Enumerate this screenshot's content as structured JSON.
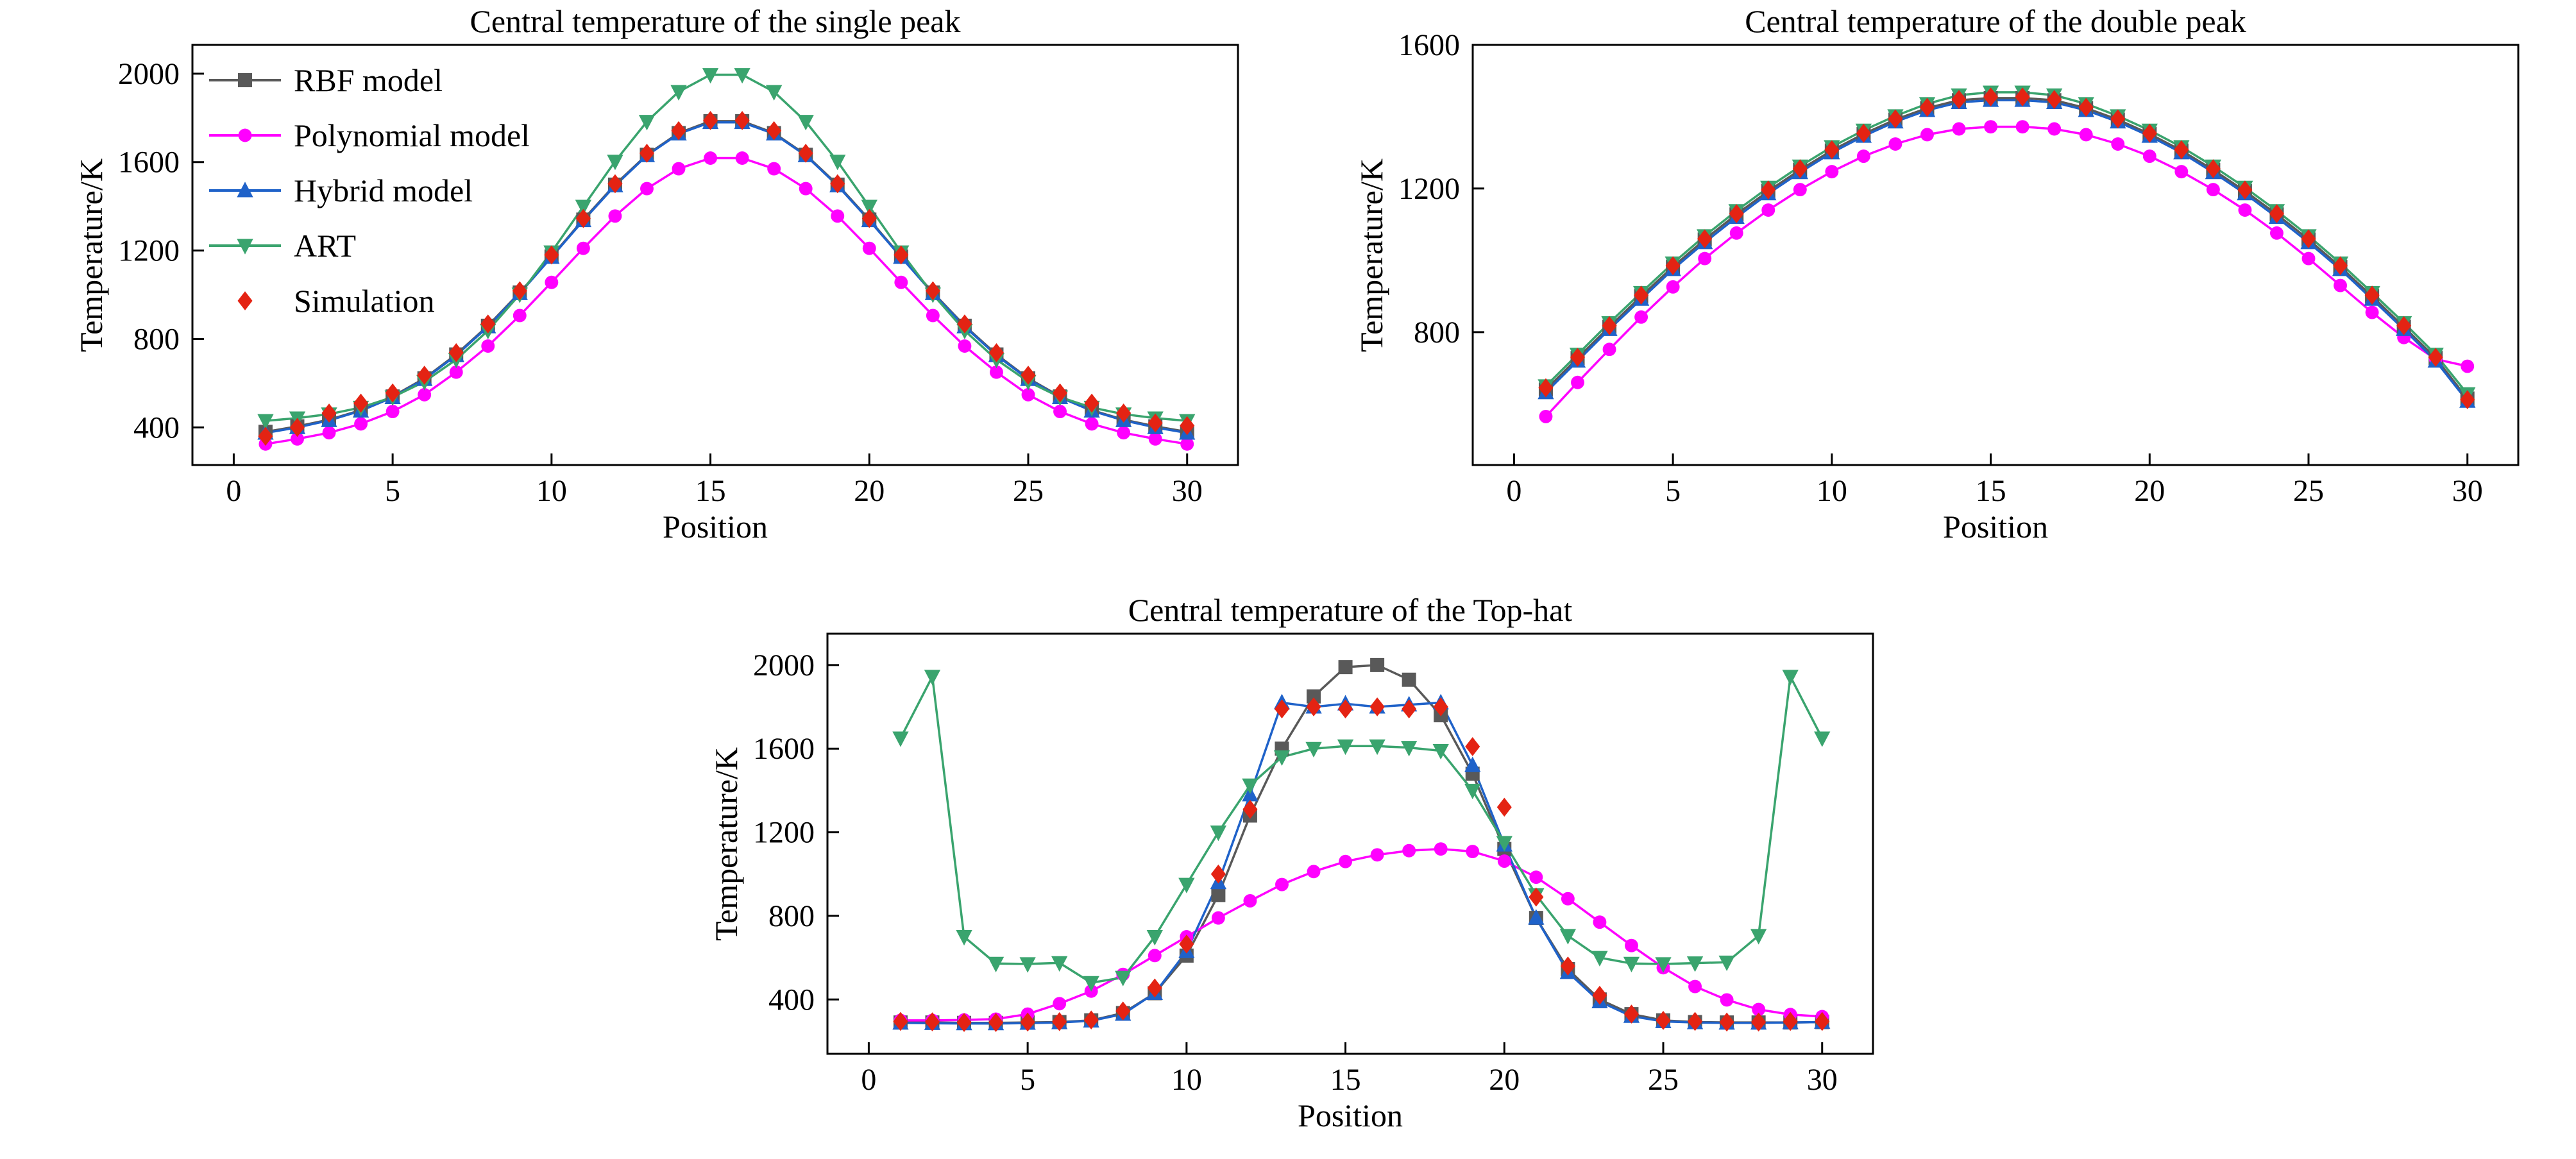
{
  "figure": {
    "background": "#ffffff"
  },
  "chart_data": [
    {
      "type": "line",
      "title": "Central temperature of the single peak",
      "xlabel": "Position",
      "ylabel": "Temperature/K",
      "xlim": [
        -1.3,
        31.6
      ],
      "ylim": [
        230,
        2130
      ],
      "xticks": [
        0,
        5,
        10,
        15,
        20,
        25,
        30
      ],
      "yticks": [
        400,
        800,
        1200,
        1600,
        2000
      ],
      "grid": false,
      "legend_position": "top-left",
      "x": [
        1,
        2,
        3,
        4,
        5,
        6,
        7,
        8,
        9,
        10,
        11,
        12,
        13,
        14,
        15,
        16,
        17,
        18,
        19,
        20,
        21,
        22,
        23,
        24,
        25,
        26,
        27,
        28,
        29,
        30
      ],
      "series": [
        {
          "name": "RBF model",
          "color": "#595959",
          "marker": "square",
          "line": true,
          "values": [
            380,
            405,
            435,
            478,
            540,
            622,
            730,
            860,
            1010,
            1173,
            1340,
            1498,
            1633,
            1731,
            1785,
            1785,
            1731,
            1633,
            1498,
            1340,
            1173,
            1010,
            860,
            730,
            622,
            540,
            478,
            435,
            405,
            380
          ]
        },
        {
          "name": "Polynomial model",
          "color": "#ff00ff",
          "marker": "circle",
          "line": true,
          "values": [
            325,
            348,
            376,
            416,
            472,
            548,
            650,
            768,
            906,
            1056,
            1210,
            1356,
            1480,
            1570,
            1618,
            1618,
            1570,
            1480,
            1356,
            1210,
            1056,
            906,
            768,
            650,
            548,
            472,
            416,
            376,
            348,
            325
          ]
        },
        {
          "name": "Hybrid model",
          "color": "#1f62c9",
          "marker": "triangle-up",
          "line": true,
          "values": [
            375,
            400,
            432,
            475,
            536,
            618,
            726,
            856,
            1006,
            1170,
            1336,
            1494,
            1630,
            1728,
            1780,
            1780,
            1728,
            1630,
            1494,
            1336,
            1170,
            1006,
            856,
            726,
            618,
            536,
            475,
            432,
            400,
            375
          ]
        },
        {
          "name": "ART",
          "color": "#3aa46e",
          "marker": "triangle-down",
          "line": true,
          "values": [
            430,
            442,
            460,
            490,
            537,
            607,
            707,
            838,
            1002,
            1193,
            1399,
            1603,
            1783,
            1918,
            1995,
            1995,
            1918,
            1783,
            1603,
            1399,
            1193,
            1002,
            838,
            707,
            607,
            537,
            490,
            460,
            442,
            430
          ]
        },
        {
          "name": "Simulation",
          "color": "#e42313",
          "marker": "diamond",
          "line": false,
          "values": [
            360,
            400,
            465,
            510,
            556,
            636,
            738,
            868,
            1018,
            1180,
            1345,
            1502,
            1640,
            1742,
            1788,
            1788,
            1742,
            1640,
            1502,
            1345,
            1180,
            1018,
            868,
            738,
            636,
            556,
            510,
            465,
            420,
            408
          ]
        }
      ]
    },
    {
      "type": "line",
      "title": "Central temperature of the double peak",
      "xlabel": "Position",
      "ylabel": "Temperature/K",
      "xlim": [
        -1.3,
        31.6
      ],
      "ylim": [
        430,
        1600
      ],
      "xticks": [
        0,
        5,
        10,
        15,
        20,
        25,
        30
      ],
      "yticks": [
        800,
        1200,
        1600
      ],
      "grid": false,
      "x": [
        1,
        2,
        3,
        4,
        5,
        6,
        7,
        8,
        9,
        10,
        11,
        12,
        13,
        14,
        15,
        16,
        17,
        18,
        19,
        20,
        21,
        22,
        23,
        24,
        25,
        26,
        27,
        28,
        29,
        30
      ],
      "series": [
        {
          "name": "RBF model",
          "color": "#595959",
          "marker": "square",
          "line": true,
          "values": [
            640,
            728,
            815,
            900,
            982,
            1058,
            1128,
            1193,
            1252,
            1306,
            1352,
            1392,
            1424,
            1446,
            1452,
            1452,
            1446,
            1424,
            1392,
            1352,
            1306,
            1252,
            1193,
            1128,
            1058,
            982,
            900,
            815,
            728,
            615
          ]
        },
        {
          "name": "Polynomial model",
          "color": "#ff00ff",
          "marker": "circle",
          "line": true,
          "values": [
            565,
            660,
            752,
            842,
            926,
            1005,
            1076,
            1140,
            1197,
            1247,
            1290,
            1324,
            1350,
            1366,
            1372,
            1372,
            1366,
            1350,
            1324,
            1290,
            1247,
            1197,
            1140,
            1076,
            1005,
            930,
            855,
            785,
            725,
            705
          ]
        },
        {
          "name": "Hybrid model",
          "color": "#1f62c9",
          "marker": "triangle-up",
          "line": true,
          "values": [
            632,
            720,
            808,
            892,
            975,
            1050,
            1120,
            1186,
            1245,
            1300,
            1346,
            1386,
            1418,
            1440,
            1446,
            1446,
            1440,
            1418,
            1386,
            1346,
            1300,
            1245,
            1186,
            1120,
            1050,
            975,
            892,
            808,
            720,
            608
          ]
        },
        {
          "name": "ART",
          "color": "#3aa46e",
          "marker": "triangle-down",
          "line": true,
          "values": [
            650,
            738,
            826,
            910,
            992,
            1068,
            1138,
            1203,
            1262,
            1316,
            1362,
            1402,
            1436,
            1460,
            1468,
            1468,
            1460,
            1436,
            1402,
            1362,
            1316,
            1262,
            1203,
            1138,
            1068,
            992,
            910,
            826,
            738,
            628
          ]
        },
        {
          "name": "Simulation",
          "color": "#e42313",
          "marker": "diamond",
          "line": false,
          "values": [
            645,
            730,
            818,
            903,
            985,
            1060,
            1130,
            1196,
            1255,
            1308,
            1354,
            1394,
            1426,
            1448,
            1455,
            1455,
            1448,
            1426,
            1394,
            1354,
            1308,
            1255,
            1196,
            1130,
            1060,
            985,
            903,
            818,
            730,
            612
          ]
        }
      ]
    },
    {
      "type": "line",
      "title": "Central temperature of the Top-hat",
      "xlabel": "Position",
      "ylabel": "Temperature/K",
      "xlim": [
        -1.3,
        31.6
      ],
      "ylim": [
        140,
        2150
      ],
      "xticks": [
        0,
        5,
        10,
        15,
        20,
        25,
        30
      ],
      "yticks": [
        400,
        800,
        1200,
        1600,
        2000
      ],
      "grid": false,
      "x": [
        1,
        2,
        3,
        4,
        5,
        6,
        7,
        8,
        9,
        10,
        11,
        12,
        13,
        14,
        15,
        16,
        17,
        18,
        19,
        20,
        21,
        22,
        23,
        24,
        25,
        26,
        27,
        28,
        29,
        30
      ],
      "series": [
        {
          "name": "RBF model",
          "color": "#595959",
          "marker": "square",
          "line": true,
          "values": [
            290,
            290,
            288,
            288,
            290,
            292,
            300,
            335,
            430,
            610,
            900,
            1280,
            1600,
            1850,
            1990,
            2000,
            1930,
            1760,
            1480,
            1120,
            790,
            545,
            400,
            330,
            300,
            292,
            290,
            290,
            290,
            292
          ]
        },
        {
          "name": "Polynomial model",
          "color": "#ff00ff",
          "marker": "circle",
          "line": true,
          "values": [
            300,
            300,
            302,
            306,
            330,
            380,
            440,
            520,
            610,
            700,
            790,
            872,
            950,
            1012,
            1060,
            1092,
            1112,
            1120,
            1108,
            1062,
            985,
            882,
            770,
            658,
            552,
            462,
            398,
            352,
            328,
            318
          ]
        },
        {
          "name": "Hybrid model",
          "color": "#1f62c9",
          "marker": "triangle-up",
          "line": true,
          "values": [
            288,
            286,
            285,
            285,
            287,
            290,
            298,
            330,
            430,
            630,
            960,
            1380,
            1820,
            1800,
            1815,
            1800,
            1810,
            1820,
            1520,
            1140,
            790,
            530,
            390,
            320,
            295,
            290,
            288,
            288,
            290,
            292
          ]
        },
        {
          "name": "ART",
          "color": "#3aa46e",
          "marker": "triangle-down",
          "line": true,
          "values": [
            1650,
            1945,
            700,
            572,
            570,
            575,
            480,
            505,
            700,
            950,
            1200,
            1425,
            1560,
            1600,
            1612,
            1612,
            1605,
            1590,
            1400,
            1150,
            900,
            705,
            600,
            572,
            570,
            574,
            578,
            705,
            1945,
            1650
          ]
        },
        {
          "name": "Simulation",
          "color": "#e42313",
          "marker": "diamond",
          "line": false,
          "values": [
            295,
            293,
            290,
            290,
            292,
            294,
            302,
            345,
            455,
            665,
            1000,
            1310,
            1790,
            1800,
            1790,
            1800,
            1790,
            1800,
            1610,
            1320,
            890,
            560,
            420,
            330,
            300,
            295,
            292,
            292,
            295,
            295
          ]
        }
      ]
    }
  ]
}
